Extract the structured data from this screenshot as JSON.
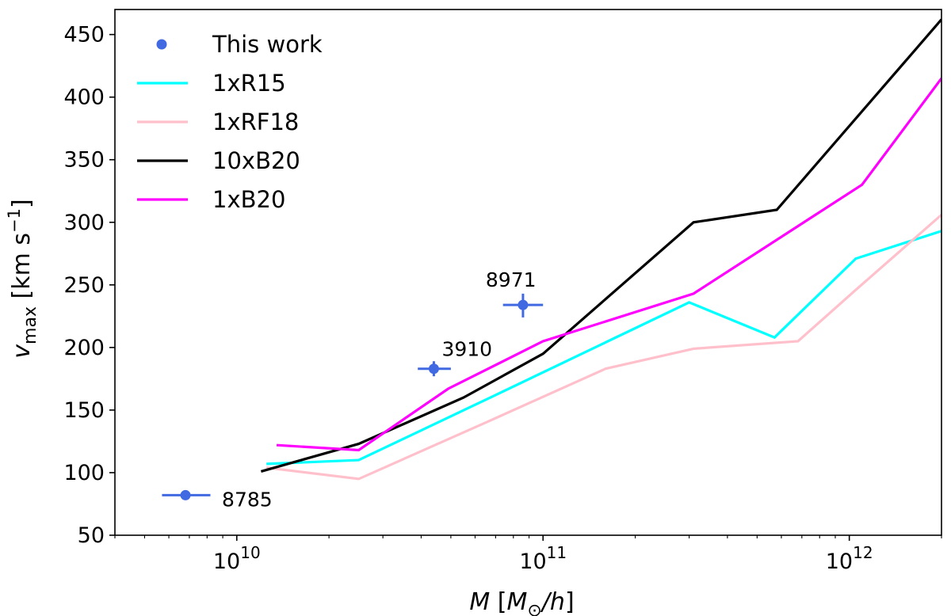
{
  "chart_data": {
    "type": "line",
    "xscale": "log",
    "xlim": [
      4000000000.0,
      2000000000000.0
    ],
    "ylim": [
      50,
      470
    ],
    "grid": false,
    "legend_placement": "top-left",
    "xlabel": "M [M⊙/h]",
    "xlabel_parts": {
      "italic_m": "M",
      "open": " [",
      "msym": "M",
      "sub": "⊙",
      "slash_h": "/h",
      "close": "]"
    },
    "ylabel_parts": {
      "v": "v",
      "sub": "max",
      "unit": " [km s",
      "exp": "−1",
      "close": "]"
    },
    "x_ticks": [
      {
        "value": 10000000000.0,
        "base": "10",
        "exp": "10"
      },
      {
        "value": 100000000000.0,
        "base": "10",
        "exp": "11"
      },
      {
        "value": 1000000000000.0,
        "base": "10",
        "exp": "12"
      }
    ],
    "y_ticks": [
      50,
      100,
      150,
      200,
      250,
      300,
      350,
      400,
      450
    ],
    "points": {
      "name": "This work",
      "color": "#4169e1",
      "items": [
        {
          "label": "8785",
          "x": 6800000000.0,
          "y": 82,
          "xerr": [
            5700000000.0,
            8200000000.0
          ],
          "yerr": [
            80,
            84
          ]
        },
        {
          "label": "3910",
          "x": 44000000000.0,
          "y": 183,
          "xerr": [
            39000000000.0,
            50000000000.0
          ],
          "yerr": [
            177,
            189
          ]
        },
        {
          "label": "8971",
          "x": 86000000000.0,
          "y": 234,
          "xerr": [
            74000000000.0,
            100000000000.0
          ],
          "yerr": [
            224,
            243
          ]
        }
      ]
    },
    "series": [
      {
        "name": "1xR15",
        "color": "#00ffff",
        "x": [
          12500000000.0,
          25000000000.0,
          70000000000.0,
          300000000000.0,
          570000000000.0,
          1050000000000.0,
          2000000000000.0
        ],
        "y": [
          107,
          110,
          162,
          236,
          208,
          271,
          293
        ]
      },
      {
        "name": "1xRF18",
        "color": "#ffc0cb",
        "x": [
          12500000000.0,
          25000000000.0,
          65000000000.0,
          160000000000.0,
          310000000000.0,
          680000000000.0,
          1050000000000.0,
          2000000000000.0
        ],
        "y": [
          104,
          95,
          140,
          183,
          199,
          205,
          246,
          306
        ]
      },
      {
        "name": "10xB20",
        "color": "#000000",
        "x": [
          12000000000.0,
          25000000000.0,
          55000000000.0,
          100000000000.0,
          310000000000.0,
          580000000000.0,
          2000000000000.0
        ],
        "y": [
          101,
          123,
          160,
          195,
          300,
          310,
          462
        ]
      },
      {
        "name": "1xB20",
        "color": "#ff00ff",
        "x": [
          13500000000.0,
          25000000000.0,
          49000000000.0,
          100000000000.0,
          310000000000.0,
          1100000000000.0,
          2000000000000.0
        ],
        "y": [
          122,
          118,
          167,
          205,
          243,
          330,
          415
        ]
      }
    ]
  }
}
